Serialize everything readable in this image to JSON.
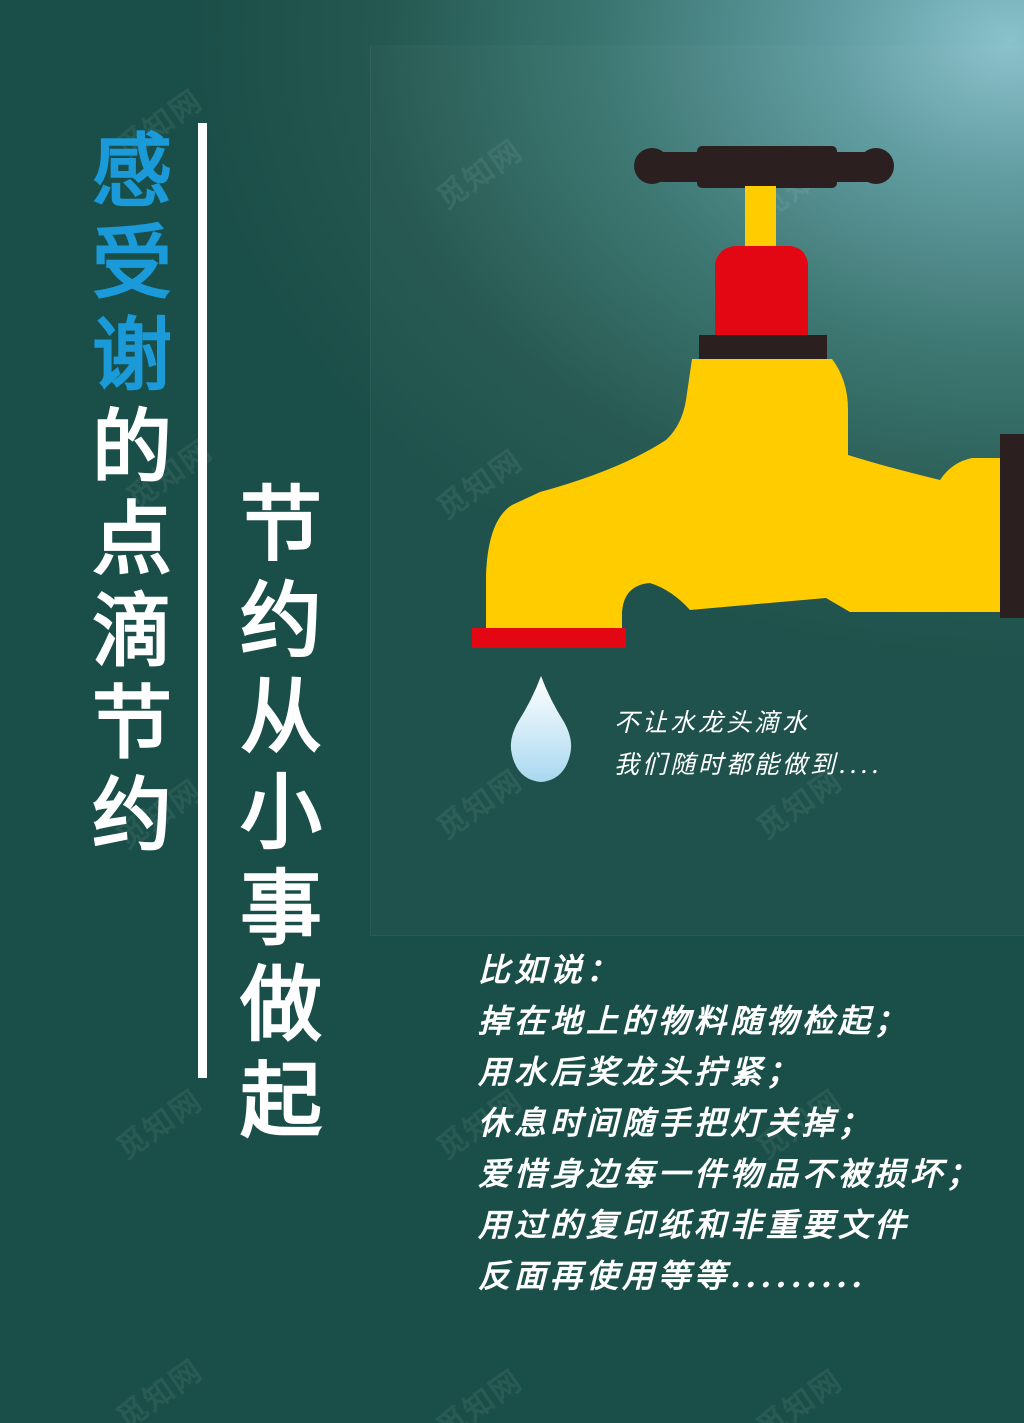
{
  "colors": {
    "background": "#1a4e48",
    "background_highlight": "#8ac2cc",
    "accent_blue": "#1a9ad9",
    "text": "#ffffff",
    "faucet_body": "#ffcc00",
    "faucet_valve": "#e30613",
    "faucet_handle": "#2b1f1f",
    "water_drop": "#bfe3f5"
  },
  "title": {
    "accent_chars": [
      "感",
      "受",
      "谢"
    ],
    "chars": [
      "的",
      "点",
      "滴",
      "节",
      "约"
    ]
  },
  "slogan": {
    "chars": [
      "节",
      "约",
      "从",
      "小",
      "事",
      "做",
      "起"
    ]
  },
  "illustration": {
    "icon": "faucet-icon",
    "drop_icon": "water-drop-icon"
  },
  "caption": {
    "line1": "不让水龙头滴水",
    "line2": "我们随时都能做到...."
  },
  "examples": {
    "heading": "比如说：",
    "items": [
      "掉在地上的物料随物检起；",
      "用水后奖龙头拧紧；",
      "休息时间随手把灯关掉；",
      "爱惜身边每一件物品不被损坏；",
      "用过的复印纸和非重要文件",
      "反面再使用等等........."
    ]
  },
  "watermark": "觅知网"
}
